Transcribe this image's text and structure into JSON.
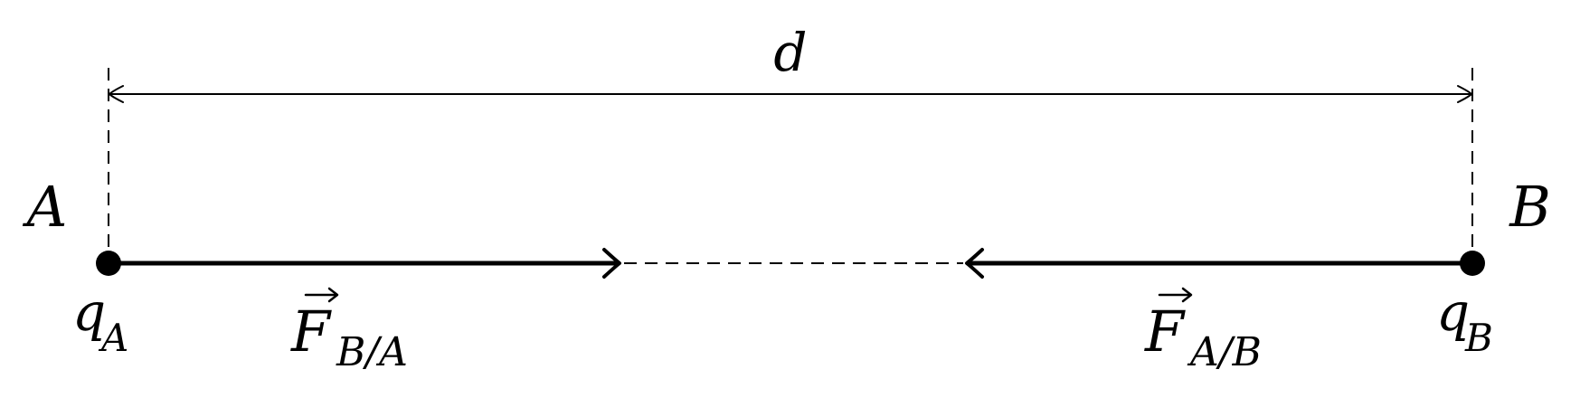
{
  "diagram": {
    "distance_label": "d",
    "point_a": {
      "label": "A",
      "charge": {
        "base": "q",
        "sub": "A"
      }
    },
    "point_b": {
      "label": "B",
      "charge": {
        "base": "q",
        "sub": "B"
      }
    },
    "force_on_a": {
      "base": "F",
      "sub": "B/A"
    },
    "force_on_b": {
      "base": "F",
      "sub": "A/B"
    },
    "colors": {
      "ink": "#000000",
      "background": "#ffffff"
    }
  }
}
